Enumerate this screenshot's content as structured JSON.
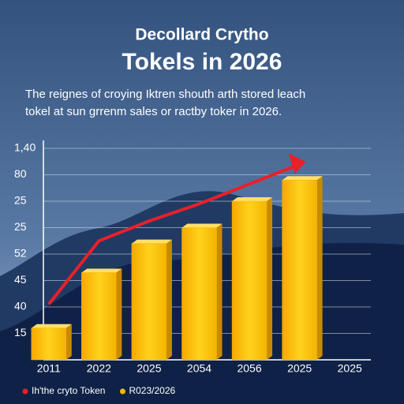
{
  "chart_data": {
    "type": "bar",
    "title": "Decollard Crytho",
    "subtitle": "Tokels in 2026",
    "description": [
      "The reignes of croying Iktren shouth arth stored leach",
      "tokel at sun grrenm sales or ractby toker in 2026."
    ],
    "categories": [
      "2011",
      "2022",
      "2025",
      "2054",
      "2056",
      "2025",
      "2025"
    ],
    "series": [
      {
        "name": "Ih'the cryto Token",
        "type": "line",
        "color": "#e8202a",
        "values": [
          2.1,
          4.5,
          5.25,
          5.9,
          6.65,
          7.4,
          null
        ]
      },
      {
        "name": "R023/2026",
        "type": "bar",
        "color": "#f5b800",
        "values": [
          1.2,
          3.3,
          4.4,
          5.0,
          6.0,
          6.8,
          null
        ]
      }
    ],
    "ylim": [
      0,
      8
    ],
    "yticks": [
      {
        "value": 1,
        "label": "15"
      },
      {
        "value": 2,
        "label": "40"
      },
      {
        "value": 3,
        "label": "45"
      },
      {
        "value": 4,
        "label": "52"
      },
      {
        "value": 5,
        "label": "25"
      },
      {
        "value": 6,
        "label": "25"
      },
      {
        "value": 7,
        "label": "80"
      },
      {
        "value": 8,
        "label": "1,40"
      }
    ],
    "grid": true
  }
}
